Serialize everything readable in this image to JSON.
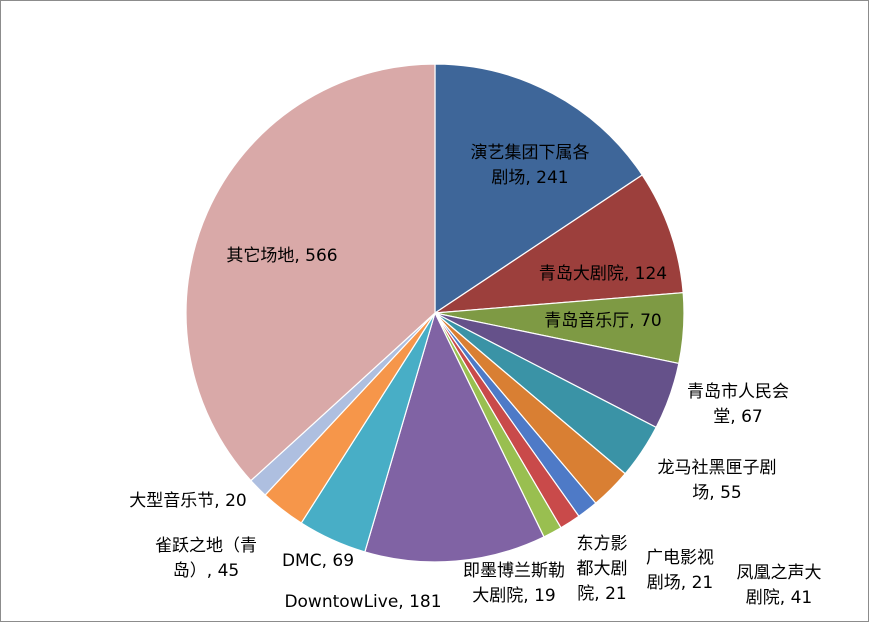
{
  "chart_data": {
    "type": "pie",
    "title": "",
    "start_angle_deg": 0,
    "direction": "clockwise",
    "legend": "none",
    "slices": [
      {
        "label": "演艺集团下属各剧场",
        "value": 241,
        "text_lines": [
          "演艺集团下属各",
          "剧场, 241"
        ],
        "color": "#3E6699"
      },
      {
        "label": "青岛大剧院",
        "value": 124,
        "text_lines": [
          "青岛大剧院, 124"
        ],
        "color": "#9C3F3C"
      },
      {
        "label": "青岛音乐厅",
        "value": 70,
        "text_lines": [
          "青岛音乐厅, 70"
        ],
        "color": "#7E9A44"
      },
      {
        "label": "青岛市人民会堂",
        "value": 67,
        "text_lines": [
          "青岛市人民会",
          "堂, 67"
        ],
        "color": "#65518A"
      },
      {
        "label": "龙马社黑匣子剧场",
        "value": 55,
        "text_lines": [
          "龙马社黑匣子剧",
          "场, 55"
        ],
        "color": "#3A93A6"
      },
      {
        "label": "凤凰之声大剧院",
        "value": 41,
        "text_lines": [
          "凤凰之声大",
          "剧院, 41"
        ],
        "color": "#D97F33"
      },
      {
        "label": "广电影视剧场",
        "value": 21,
        "text_lines": [
          "广电影视",
          "剧场, 21"
        ],
        "color": "#4E7AC7"
      },
      {
        "label": "东方影都大剧院",
        "value": 21,
        "text_lines": [
          "东方影",
          "都大剧",
          "院, 21"
        ],
        "color": "#C94A4A"
      },
      {
        "label": "即墨博兰斯勒大剧院",
        "value": 19,
        "text_lines": [
          "即墨博兰斯勒",
          "大剧院, 19"
        ],
        "color": "#99BF50"
      },
      {
        "label": "DowntowLive",
        "value": 181,
        "text_lines": [
          "DowntowLive, 181"
        ],
        "color": "#8063A4"
      },
      {
        "label": "DMC",
        "value": 69,
        "text_lines": [
          "DMC, 69"
        ],
        "color": "#48AEC6"
      },
      {
        "label": "雀跃之地（青岛）",
        "value": 45,
        "text_lines": [
          "雀跃之地（青",
          "岛）, 45"
        ],
        "color": "#F6964A"
      },
      {
        "label": "大型音乐节",
        "value": 20,
        "text_lines": [
          "大型音乐节, 20"
        ],
        "color": "#AEBFE0"
      },
      {
        "label": "其它场地",
        "value": 566,
        "text_lines": [
          "其它场地, 566"
        ],
        "color": "#D9A9A8"
      }
    ]
  }
}
